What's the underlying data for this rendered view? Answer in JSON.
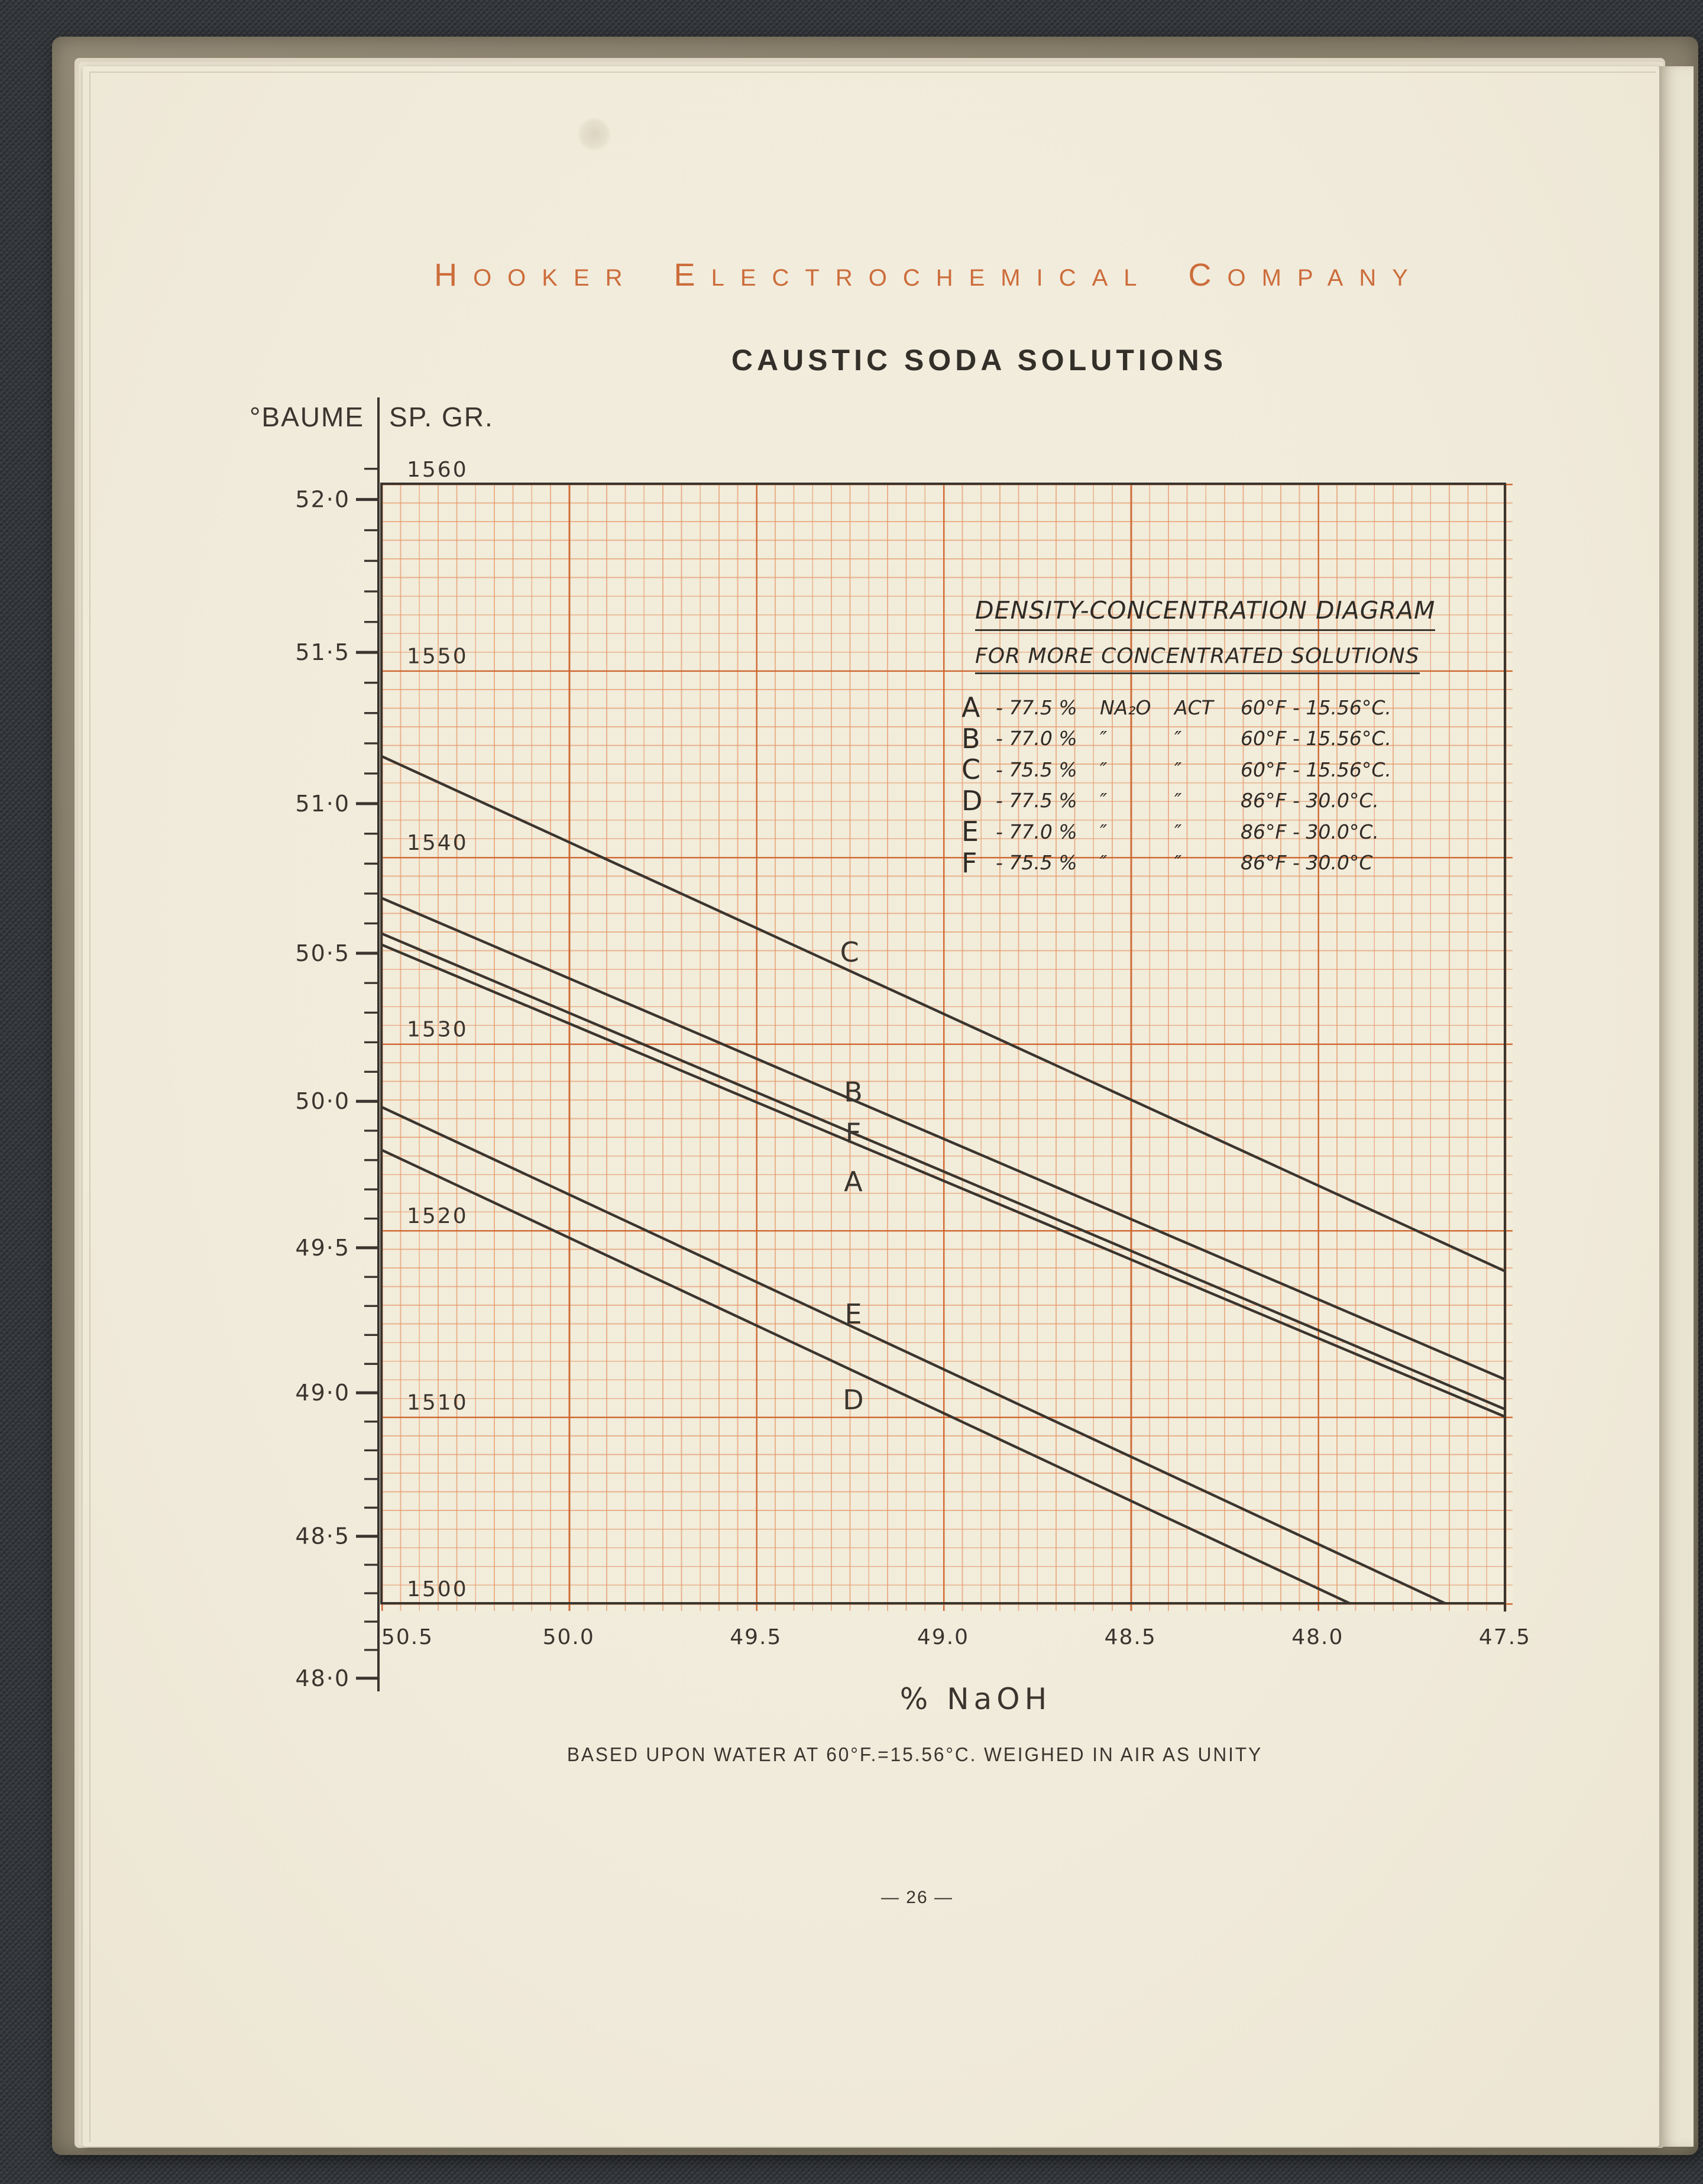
{
  "page": {
    "header": {
      "words": [
        {
          "lead": "H",
          "rest": "OOKER"
        },
        {
          "lead": "E",
          "rest": "LECTROCHEMICAL"
        },
        {
          "lead": "C",
          "rest": "OMPANY"
        }
      ]
    },
    "title": "CAUSTIC SODA SOLUTIONS",
    "axis_header": {
      "baume": "°BAUME",
      "spgr": "SP. GR."
    },
    "footer": "BASED UPON WATER AT 60°F.=15.56°C. WEIGHED IN AIR AS UNITY",
    "page_number": "— 26 —"
  },
  "colors": {
    "accent_orange": "#cc6d3b",
    "grid_major": "#cd642d",
    "grid_minor": "#e49462",
    "ink": "#3a352e",
    "paper": "#f2ecdb",
    "page": "#f1ebdc",
    "cover": "#8a8170",
    "background": "#33363a"
  },
  "chart_data": {
    "type": "line",
    "title": "DENSITY-CONCENTRATION DIAGRAM",
    "subtitle": "FOR MORE CONCENTRATED SOLUTIONS",
    "xlabel": "% NaOH",
    "x_axis": {
      "label": "% NaOH",
      "min": 47.5,
      "max": 50.5,
      "reversed": true,
      "tick_values": [
        50.5,
        50.0,
        49.5,
        49.0,
        48.5,
        48.0,
        47.5
      ],
      "tick_labels": [
        "50.5",
        "50.0",
        "49.5",
        "49.0",
        "48.5",
        "48.0",
        "47.5"
      ]
    },
    "y_axis_spgr": {
      "label": "SP. GR.",
      "min": 1500,
      "max": 1560,
      "tick_values": [
        1560,
        1550,
        1540,
        1530,
        1520,
        1510,
        1500
      ],
      "tick_labels": [
        "1560",
        "1550",
        "1540",
        "1530",
        "1520",
        "1510",
        "1500"
      ]
    },
    "y_axis_baume": {
      "label": "°BAUME",
      "min": 48.0,
      "max": 52.0,
      "minor_step": 0.1,
      "major_tick_values": [
        52.0,
        51.5,
        51.0,
        50.5,
        50.0,
        49.5,
        49.0,
        48.5,
        48.0
      ],
      "major_tick_labels": [
        "52·0",
        "51·5",
        "51·0",
        "50·5",
        "50·0",
        "49·5",
        "49·0",
        "48·5",
        "48·0"
      ]
    },
    "series": [
      {
        "name": "C",
        "points": [
          [
            50.5,
            1545.4
          ],
          [
            47.5,
            1517.8
          ]
        ],
        "label_at": [
          49.25,
          1534.9
        ]
      },
      {
        "name": "B",
        "points": [
          [
            50.5,
            1537.8
          ],
          [
            47.5,
            1512.0
          ]
        ],
        "label_at": [
          49.24,
          1527.4
        ]
      },
      {
        "name": "F",
        "points": [
          [
            50.5,
            1535.9
          ],
          [
            47.5,
            1510.4
          ]
        ],
        "label_at": [
          49.24,
          1525.2
        ]
      },
      {
        "name": "A",
        "points": [
          [
            50.5,
            1535.3
          ],
          [
            47.5,
            1510.0
          ]
        ],
        "label_at": [
          49.24,
          1522.6
        ]
      },
      {
        "name": "E",
        "points": [
          [
            50.5,
            1526.6
          ],
          [
            47.5,
            1498.5
          ]
        ],
        "label_at": [
          49.24,
          1515.5
        ]
      },
      {
        "name": "D",
        "points": [
          [
            50.5,
            1524.3
          ],
          [
            47.5,
            1496.1
          ]
        ],
        "label_at": [
          49.24,
          1510.9
        ]
      }
    ],
    "legend": {
      "entries": [
        {
          "letter": "A",
          "pct": "- 77.5 %",
          "col_na2o": "NA₂O",
          "col_act": "ACT",
          "temp": "60°F - 15.56°C."
        },
        {
          "letter": "B",
          "pct": "- 77.0 %",
          "col_na2o": "″",
          "col_act": "″",
          "temp": "60°F - 15.56°C."
        },
        {
          "letter": "C",
          "pct": "- 75.5 %",
          "col_na2o": "″",
          "col_act": "″",
          "temp": "60°F - 15.56°C."
        },
        {
          "letter": "D",
          "pct": "- 77.5 %",
          "col_na2o": "″",
          "col_act": "″",
          "temp": "86°F - 30.0°C."
        },
        {
          "letter": "E",
          "pct": "- 77.0 %",
          "col_na2o": "″",
          "col_act": "″",
          "temp": "86°F - 30.0°C."
        },
        {
          "letter": "F",
          "pct": "- 75.5 %",
          "col_na2o": "″",
          "col_act": "″",
          "temp": "86°F - 30.0°C"
        }
      ]
    }
  }
}
